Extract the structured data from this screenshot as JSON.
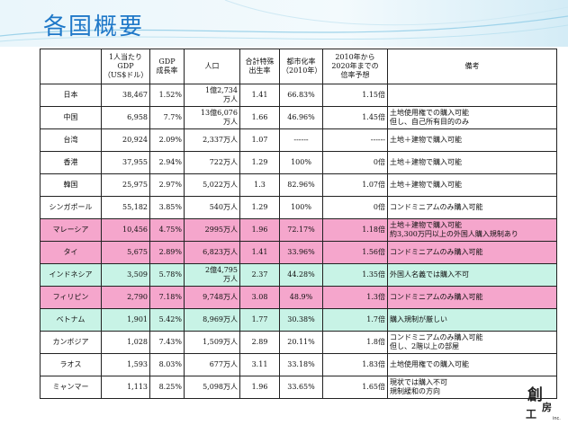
{
  "slide": {
    "title": "各国概要",
    "colors": {
      "title": "#1f78c8",
      "highlight_pink": "#f5a6cc",
      "highlight_mint": "#c8f3e6"
    }
  },
  "table": {
    "headers": [
      "",
      "1人当たり\nGDP\n（US$ドル）",
      "GDP\n成長率",
      "人口",
      "合計特殊\n出生率",
      "都市化率\n（2010年）",
      "2010年から\n2020年までの\n倍率予想",
      "備考"
    ],
    "rows": [
      {
        "country": "日本",
        "gdp_per_capita": "38,467",
        "gdp_growth": "1.52%",
        "population": "1億2,734\n万人",
        "fertility": "1.41",
        "urbanization": "66.83%",
        "multiplier": "1.15倍",
        "note": "",
        "highlight": ""
      },
      {
        "country": "中国",
        "gdp_per_capita": "6,958",
        "gdp_growth": "7.7%",
        "population": "13億6,076\n万人",
        "fertility": "1.66",
        "urbanization": "46.96%",
        "multiplier": "1.45倍",
        "note": "土地使用権での購入可能\n但し、自己所有目的のみ",
        "highlight": ""
      },
      {
        "country": "台湾",
        "gdp_per_capita": "20,924",
        "gdp_growth": "2.09%",
        "population": "2,337万人",
        "fertility": "1.07",
        "urbanization": "------",
        "multiplier": "------",
        "note": "土地＋建物で購入可能",
        "highlight": ""
      },
      {
        "country": "香港",
        "gdp_per_capita": "37,955",
        "gdp_growth": "2.94%",
        "population": "722万人",
        "fertility": "1.29",
        "urbanization": "100%",
        "multiplier": "0倍",
        "note": "土地＋建物で購入可能",
        "highlight": ""
      },
      {
        "country": "韓国",
        "gdp_per_capita": "25,975",
        "gdp_growth": "2.97%",
        "population": "5,022万人",
        "fertility": "1.3",
        "urbanization": "82.96%",
        "multiplier": "1.07倍",
        "note": "土地＋建物で購入可能",
        "highlight": ""
      },
      {
        "country": "シンガポール",
        "gdp_per_capita": "55,182",
        "gdp_growth": "3.85%",
        "population": "540万人",
        "fertility": "1.29",
        "urbanization": "100%",
        "multiplier": "0倍",
        "note": "コンドミニアムのみ購入可能",
        "highlight": ""
      },
      {
        "country": "マレーシア",
        "gdp_per_capita": "10,456",
        "gdp_growth": "4.75%",
        "population": "2995万人",
        "fertility": "1.96",
        "urbanization": "72.17%",
        "multiplier": "1.18倍",
        "note": "土地＋建物で購入可能\n約3,300万円以上の外国人購入規制あり",
        "highlight": "pink"
      },
      {
        "country": "タイ",
        "gdp_per_capita": "5,675",
        "gdp_growth": "2.89%",
        "population": "6,823万人",
        "fertility": "1.41",
        "urbanization": "33.96%",
        "multiplier": "1.56倍",
        "note": "コンドミニアムのみ購入可能",
        "highlight": "pink"
      },
      {
        "country": "インドネシア",
        "gdp_per_capita": "3,509",
        "gdp_growth": "5.78%",
        "population": "2億4,795\n万人",
        "fertility": "2.37",
        "urbanization": "44.28%",
        "multiplier": "1.35倍",
        "note": "外国人名義では購入不可",
        "highlight": "mint"
      },
      {
        "country": "フィリピン",
        "gdp_per_capita": "2,790",
        "gdp_growth": "7.18%",
        "population": "9,748万人",
        "fertility": "3.08",
        "urbanization": "48.9%",
        "multiplier": "1.3倍",
        "note": "コンドミニアムのみ購入可能",
        "highlight": "pink"
      },
      {
        "country": "ベトナム",
        "gdp_per_capita": "1,901",
        "gdp_growth": "5.42%",
        "population": "8,969万人",
        "fertility": "1.77",
        "urbanization": "30.38%",
        "multiplier": "1.7倍",
        "note": "購入規制が厳しい",
        "highlight": "mint"
      },
      {
        "country": "カンボジア",
        "gdp_per_capita": "1,028",
        "gdp_growth": "7.43%",
        "population": "1,509万人",
        "fertility": "2.89",
        "urbanization": "20.11%",
        "multiplier": "1.8倍",
        "note": "コンドミニアムのみ購入可能\n但し、2階以上の部屋",
        "highlight": ""
      },
      {
        "country": "ラオス",
        "gdp_per_capita": "1,593",
        "gdp_growth": "8.03%",
        "population": "677万人",
        "fertility": "3.11",
        "urbanization": "33.18%",
        "multiplier": "1.83倍",
        "note": "土地使用権での購入可能",
        "highlight": ""
      },
      {
        "country": "ミャンマー",
        "gdp_per_capita": "1,113",
        "gdp_growth": "8.25%",
        "population": "5,098万人",
        "fertility": "1.96",
        "urbanization": "33.65%",
        "multiplier": "1.65倍",
        "note": "現状では購入不可\n規制緩和の方向",
        "highlight": ""
      }
    ]
  },
  "logo": {
    "text": "創工房",
    "suffix": "inc."
  }
}
